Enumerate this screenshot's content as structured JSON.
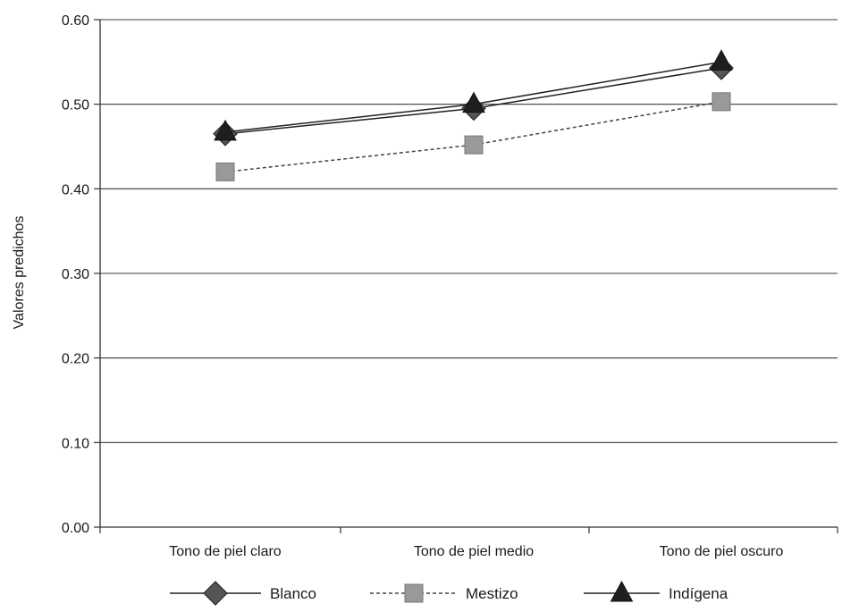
{
  "chart_data": {
    "type": "line",
    "title": "",
    "xlabel": "",
    "ylabel": "Valores predichos",
    "ylim": [
      0,
      0.6
    ],
    "yticks": [
      "0.00",
      "0.10",
      "0.20",
      "0.30",
      "0.40",
      "0.50",
      "0.60"
    ],
    "categories": [
      "Tono de piel claro",
      "Tono de piel medio",
      "Tono de piel oscuro"
    ],
    "grid": true,
    "legend_position": "bottom",
    "series": [
      {
        "name": "Blanco",
        "values": [
          0.465,
          0.495,
          0.543
        ],
        "marker": "diamond",
        "line": "solid",
        "color": "#555555"
      },
      {
        "name": "Mestizo",
        "values": [
          0.42,
          0.452,
          0.503
        ],
        "marker": "square",
        "line": "dashed",
        "color": "#999999"
      },
      {
        "name": "Indígena",
        "values": [
          0.467,
          0.5,
          0.55
        ],
        "marker": "triangle",
        "line": "solid",
        "color": "#1f1f1f"
      }
    ]
  }
}
